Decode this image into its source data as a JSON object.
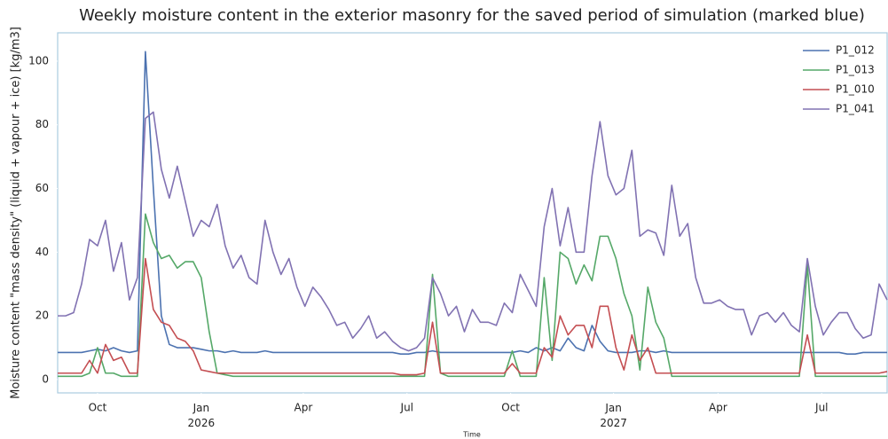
{
  "chart_data": {
    "type": "line",
    "title": "Weekly moisture content in the exterior masonry for the saved period of simulation (marked blue)",
    "x_label": "Time",
    "y_label": "Moisture content \"mass density\" (liquid + vapour + ice) [kg/m3]",
    "x": [
      0,
      1,
      2,
      3,
      4,
      5,
      6,
      7,
      8,
      9,
      10,
      11,
      12,
      13,
      14,
      15,
      16,
      17,
      18,
      19,
      20,
      21,
      22,
      23,
      24,
      25,
      26,
      27,
      28,
      29,
      30,
      31,
      32,
      33,
      34,
      35,
      36,
      37,
      38,
      39,
      40,
      41,
      42,
      43,
      44,
      45,
      46,
      47,
      48,
      49,
      50,
      51,
      52,
      53,
      54,
      55,
      56,
      57,
      58,
      59,
      60,
      61,
      62,
      63,
      64,
      65,
      66,
      67,
      68,
      69,
      70,
      71,
      72,
      73,
      74,
      75,
      76,
      77,
      78,
      79,
      80,
      81,
      82,
      83,
      84,
      85,
      86,
      87,
      88,
      89,
      90,
      91,
      92,
      93,
      94,
      95,
      96,
      97,
      98,
      99,
      100,
      101,
      102,
      103,
      104
    ],
    "xlim": [
      0,
      104
    ],
    "xticks": [
      {
        "value": 5,
        "label": "Oct"
      },
      {
        "value": 18,
        "label": "Jan\n2026"
      },
      {
        "value": 30.8,
        "label": "Apr"
      },
      {
        "value": 43.8,
        "label": "Jul"
      },
      {
        "value": 56.8,
        "label": "Oct"
      },
      {
        "value": 69.7,
        "label": "Jan\n2027"
      },
      {
        "value": 82.8,
        "label": "Apr"
      },
      {
        "value": 95.8,
        "label": "Jul"
      }
    ],
    "ylim": [
      -4.2,
      108.9
    ],
    "yticks": [
      0,
      20,
      40,
      60,
      80,
      100
    ],
    "grid": false,
    "legend": "upper right",
    "series": [
      {
        "name": "P1_012",
        "color": "#4c72b0",
        "values": [
          8.5,
          8.5,
          8.5,
          8.5,
          9,
          9.5,
          9,
          10,
          9,
          8.5,
          9,
          103,
          60,
          20,
          11,
          10,
          10,
          10,
          9.5,
          9,
          9,
          8.5,
          9,
          8.5,
          8.5,
          8.5,
          9,
          8.5,
          8.5,
          8.5,
          8.5,
          8.5,
          8.5,
          8.5,
          8.5,
          8.5,
          8.5,
          8.5,
          8.5,
          8.5,
          8.5,
          8.5,
          8.5,
          8,
          8,
          8.5,
          8.5,
          9,
          8.5,
          8.5,
          8.5,
          8.5,
          8.5,
          8.5,
          8.5,
          8.5,
          8.5,
          8.5,
          9,
          8.5,
          10,
          9,
          10,
          9,
          13,
          10,
          9,
          17,
          12,
          9,
          8.5,
          8.5,
          8.5,
          9,
          9,
          8.5,
          9,
          8.5,
          8.5,
          8.5,
          8.5,
          8.5,
          8.5,
          8.5,
          8.5,
          8.5,
          8.5,
          8.5,
          8.5,
          8.5,
          8.5,
          8.5,
          8.5,
          8.5,
          8.5,
          8.5,
          8.5,
          8.5,
          8.5,
          8,
          8,
          8.5,
          8.5,
          8.5,
          8.5
        ]
      },
      {
        "name": "P1_013",
        "color": "#55a868",
        "values": [
          1,
          1,
          1,
          1,
          2,
          10,
          2,
          2,
          1,
          1,
          1,
          52,
          43,
          38,
          39,
          35,
          37,
          37,
          32,
          15,
          2,
          1.5,
          1,
          1,
          1,
          1,
          1,
          1,
          1,
          1,
          1,
          1,
          1,
          1,
          1,
          1,
          1,
          1,
          1,
          1,
          1,
          1,
          1,
          1,
          1,
          1,
          1,
          33,
          2,
          1,
          1,
          1,
          1,
          1,
          1,
          1,
          1,
          9,
          1,
          1,
          1,
          32,
          6,
          40,
          38,
          30,
          36,
          31,
          45,
          45,
          38,
          27,
          20,
          3,
          29,
          18,
          13,
          1,
          1,
          1,
          1,
          1,
          1,
          1,
          1,
          1,
          1,
          1,
          1,
          1,
          1,
          1,
          1,
          1,
          36,
          1,
          1,
          1,
          1,
          1,
          1,
          1,
          1,
          1,
          1
        ]
      },
      {
        "name": "P1_010",
        "color": "#c44e52",
        "values": [
          2,
          2,
          2,
          2,
          6,
          2,
          11,
          6,
          7,
          2,
          2,
          38,
          22,
          18,
          17,
          13,
          12,
          9,
          3,
          2.5,
          2,
          2,
          2,
          2,
          2,
          2,
          2,
          2,
          2,
          2,
          2,
          2,
          2,
          2,
          2,
          2,
          2,
          2,
          2,
          2,
          2,
          2,
          2,
          1.5,
          1.5,
          1.5,
          2,
          18,
          2,
          2,
          2,
          2,
          2,
          2,
          2,
          2,
          2,
          5,
          2,
          2,
          2,
          10,
          7,
          20,
          14,
          17,
          17,
          10,
          23,
          23,
          10,
          3,
          14,
          6,
          10,
          2,
          2,
          2,
          2,
          2,
          2,
          2,
          2,
          2,
          2,
          2,
          2,
          2,
          2,
          2,
          2,
          2,
          2,
          2,
          14,
          2,
          2,
          2,
          2,
          2,
          2,
          2,
          2,
          2,
          2.5
        ]
      },
      {
        "name": "P1_041",
        "color": "#8172b2",
        "values": [
          20,
          20,
          21,
          30,
          44,
          42,
          50,
          34,
          43,
          25,
          32,
          82,
          84,
          66,
          57,
          67,
          56,
          45,
          50,
          48,
          55,
          42,
          35,
          39,
          32,
          30,
          50,
          40,
          33,
          38,
          29,
          23,
          29,
          26,
          22,
          17,
          18,
          13,
          16,
          20,
          13,
          15,
          12,
          10,
          9,
          10,
          13,
          32,
          27,
          20,
          23,
          15,
          22,
          18,
          18,
          17,
          24,
          21,
          33,
          28,
          23,
          48,
          60,
          42,
          54,
          40,
          40,
          64,
          81,
          64,
          58,
          60,
          72,
          45,
          47,
          46,
          39,
          61,
          45,
          49,
          32,
          24,
          24,
          25,
          23,
          22,
          22,
          14,
          20,
          21,
          18,
          21,
          17,
          15,
          38,
          23,
          14,
          18,
          21,
          21,
          16,
          13,
          14,
          30,
          25
        ]
      }
    ]
  }
}
